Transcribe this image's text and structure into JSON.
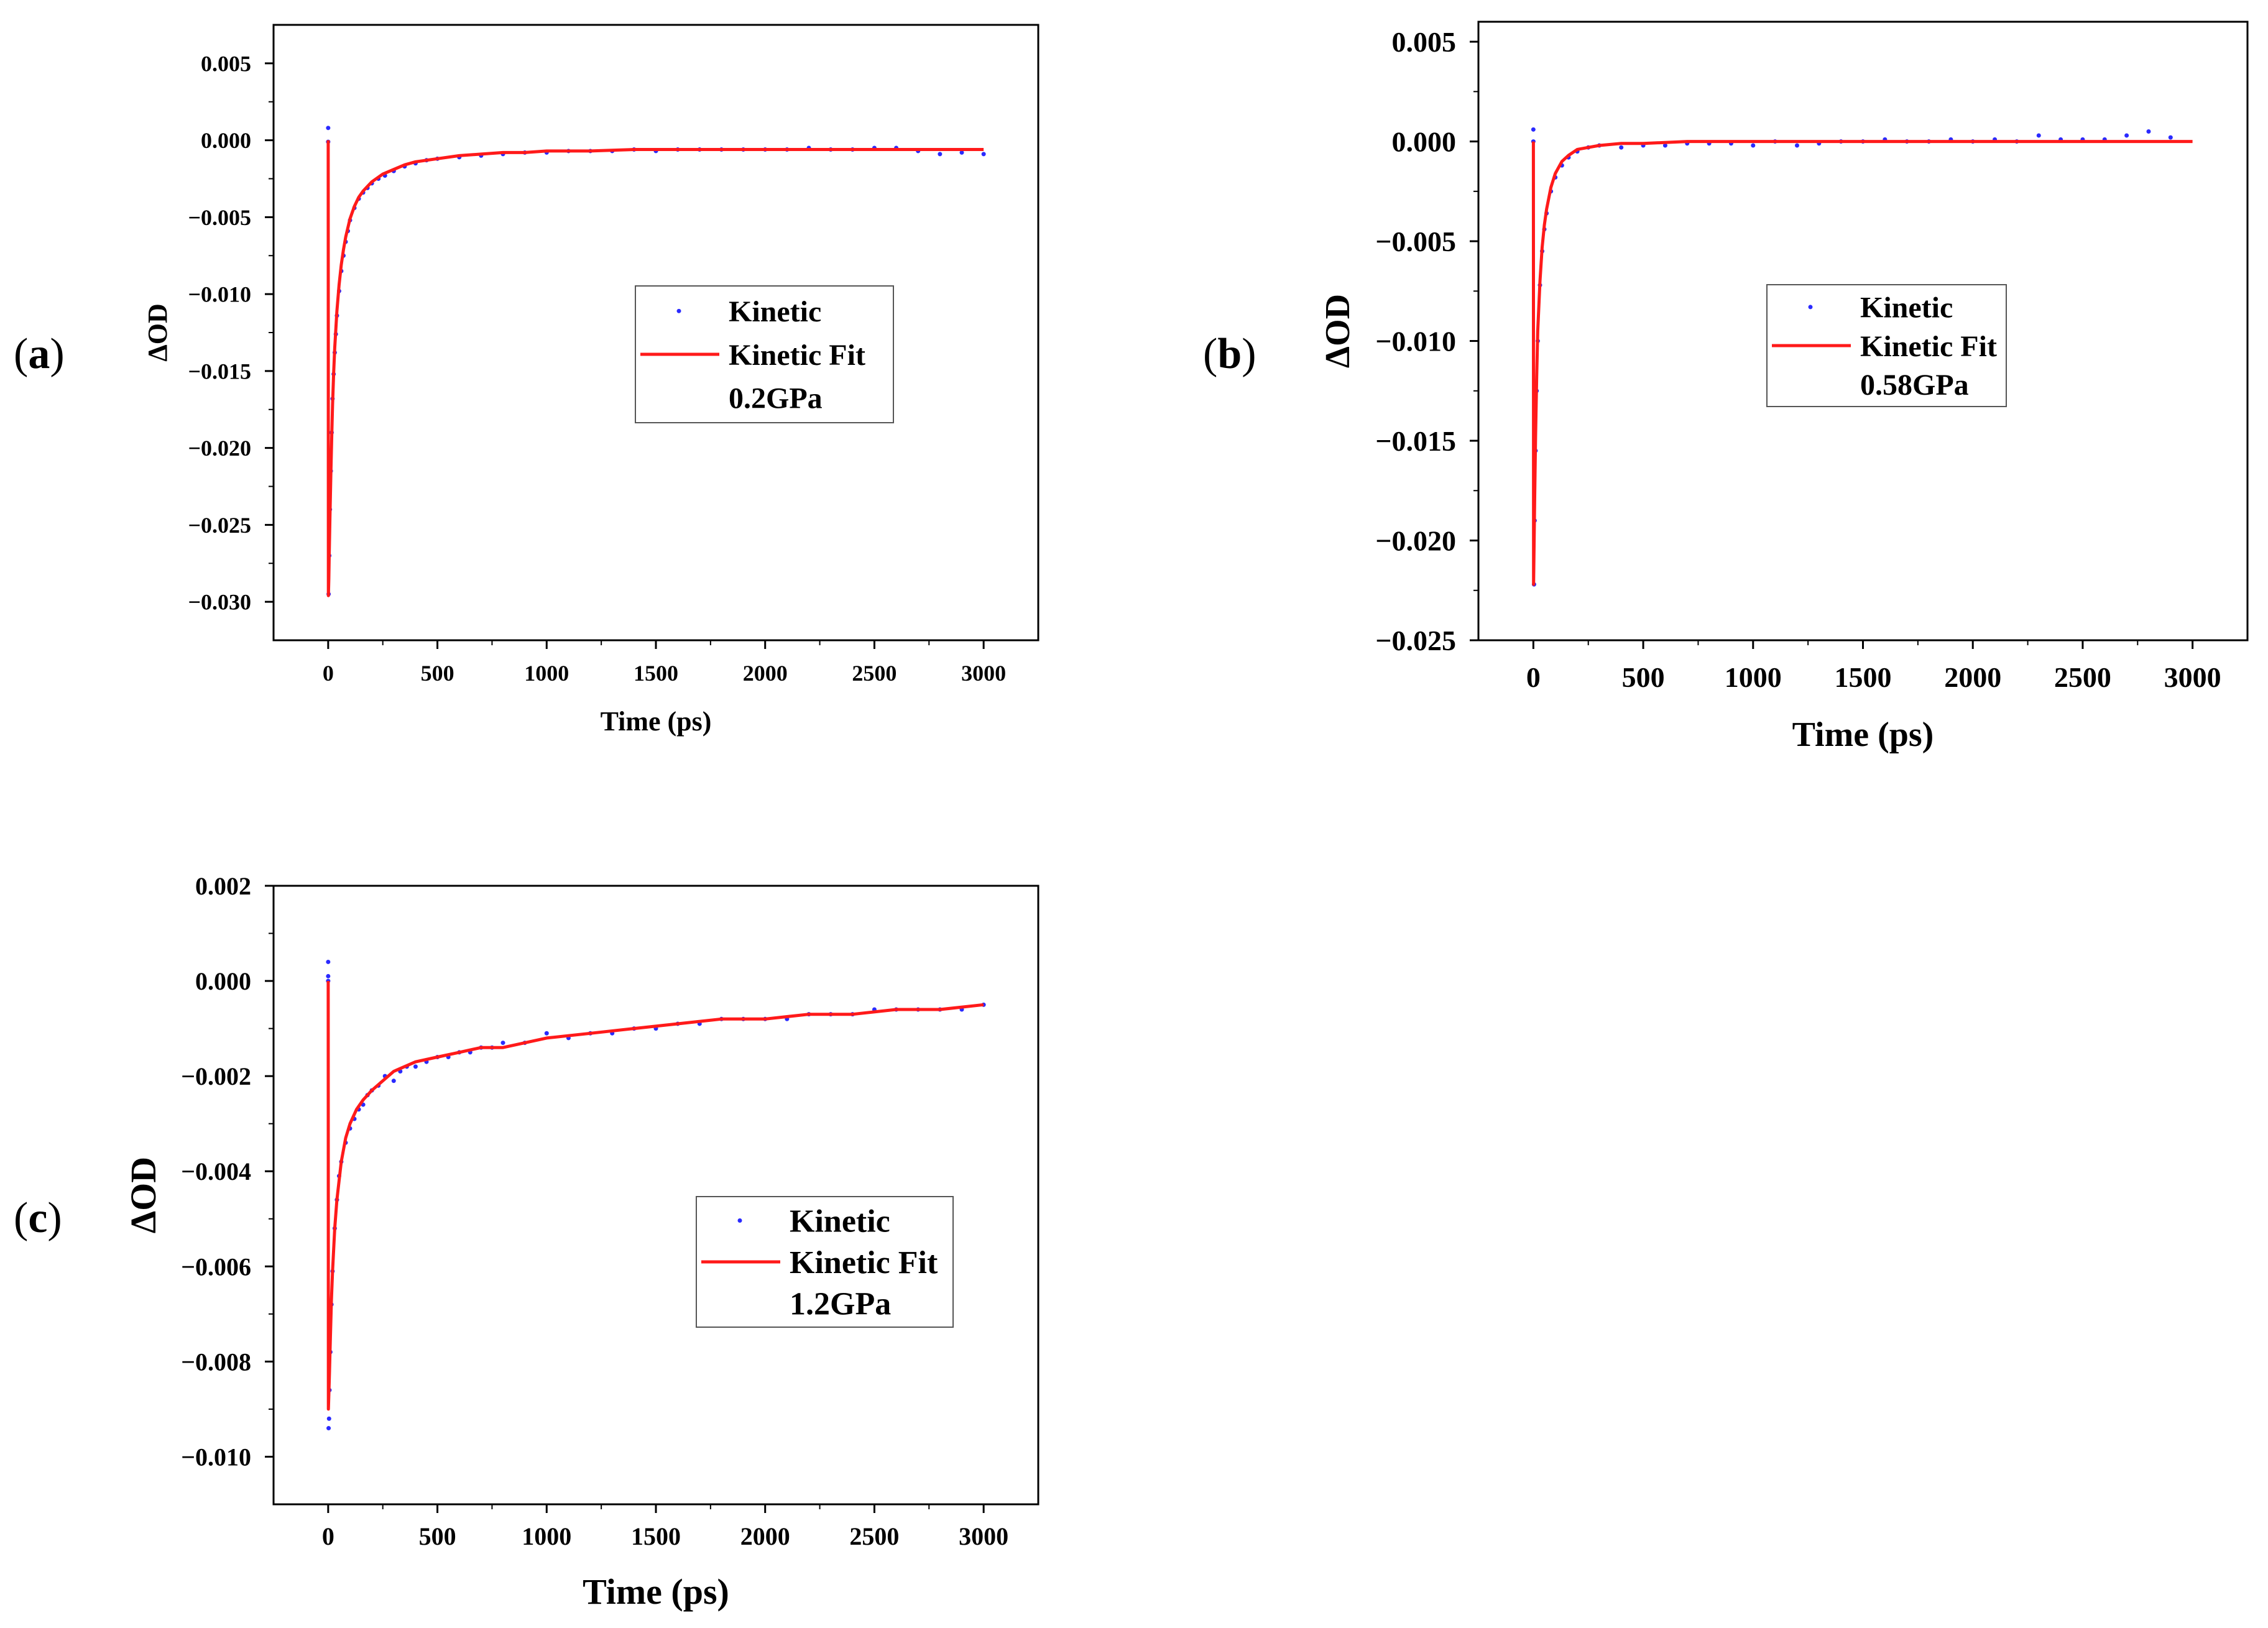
{
  "chart_data": [
    {
      "id": "a",
      "type": "scatter",
      "panel_prefix": "(",
      "panel_letter": "a",
      "panel_suffix": ")",
      "xlabel": "Time (ps)",
      "ylabel": "ΔOD",
      "xlim": [
        -250,
        3250
      ],
      "ylim": [
        -0.0325,
        0.0075
      ],
      "xticks": [
        0,
        500,
        1000,
        1500,
        2000,
        2500,
        3000
      ],
      "xtick_labels": [
        "0",
        "500",
        "1000",
        "1500",
        "2000",
        "2500",
        "3000"
      ],
      "yticks": [
        0.005,
        0.0,
        -0.005,
        -0.01,
        -0.015,
        -0.02,
        -0.025,
        -0.03
      ],
      "ytick_labels": [
        "0.005",
        "0.000",
        "−0.005",
        "−0.010",
        "−0.015",
        "−0.020",
        "−0.025",
        "−0.030"
      ],
      "legend": {
        "entries": [
          "Kinetic",
          "Kinetic Fit"
        ],
        "note": "0.2GPa",
        "placement": "center-right"
      },
      "series": [
        {
          "name": "Kinetic",
          "kind": "points",
          "color": "#2a2aff",
          "x": [
            0,
            0,
            2,
            5,
            8,
            12,
            16,
            20,
            25,
            30,
            35,
            40,
            50,
            60,
            70,
            80,
            90,
            100,
            120,
            140,
            160,
            180,
            200,
            230,
            260,
            300,
            350,
            400,
            450,
            500,
            600,
            700,
            800,
            900,
            1000,
            1100,
            1200,
            1300,
            1400,
            1500,
            1600,
            1700,
            1800,
            1900,
            2000,
            2100,
            2200,
            2300,
            2400,
            2500,
            2600,
            2700,
            2800,
            2900,
            3000
          ],
          "y": [
            0.0008,
            -0.0001,
            -0.0295,
            -0.027,
            -0.024,
            -0.0215,
            -0.019,
            -0.0168,
            -0.0152,
            -0.0138,
            -0.0126,
            -0.0114,
            -0.0098,
            -0.0085,
            -0.0075,
            -0.0066,
            -0.0059,
            -0.0052,
            -0.0044,
            -0.0038,
            -0.0034,
            -0.0031,
            -0.0028,
            -0.0025,
            -0.0023,
            -0.002,
            -0.0017,
            -0.0015,
            -0.0013,
            -0.0012,
            -0.0011,
            -0.001,
            -0.0009,
            -0.0008,
            -0.0008,
            -0.0007,
            -0.0007,
            -0.0007,
            -0.0006,
            -0.0007,
            -0.0006,
            -0.0006,
            -0.0006,
            -0.0006,
            -0.0006,
            -0.0006,
            -0.0005,
            -0.0006,
            -0.0006,
            -0.0005,
            -0.0005,
            -0.0007,
            -0.0009,
            -0.0008,
            -0.0009
          ]
        },
        {
          "name": "Kinetic Fit",
          "kind": "line",
          "color": "#ff1a1a",
          "x": [
            0,
            1,
            3,
            5,
            8,
            12,
            16,
            20,
            25,
            30,
            40,
            50,
            60,
            70,
            80,
            100,
            120,
            140,
            160,
            180,
            200,
            250,
            300,
            350,
            400,
            500,
            600,
            700,
            800,
            900,
            1000,
            1200,
            1400,
            1600,
            1800,
            2000,
            2200,
            2400,
            2600,
            2800,
            3000
          ],
          "y": [
            0.0,
            -0.0296,
            -0.0285,
            -0.0268,
            -0.0245,
            -0.0218,
            -0.0194,
            -0.0172,
            -0.0152,
            -0.0135,
            -0.0111,
            -0.0094,
            -0.0081,
            -0.0071,
            -0.0063,
            -0.0051,
            -0.0043,
            -0.0037,
            -0.0033,
            -0.003,
            -0.0027,
            -0.0022,
            -0.0019,
            -0.0016,
            -0.0014,
            -0.0012,
            -0.001,
            -0.0009,
            -0.0008,
            -0.0008,
            -0.0007,
            -0.0007,
            -0.0006,
            -0.0006,
            -0.0006,
            -0.0006,
            -0.0006,
            -0.0006,
            -0.0006,
            -0.0006,
            -0.0006
          ]
        }
      ]
    },
    {
      "id": "b",
      "type": "scatter",
      "panel_prefix": "(",
      "panel_letter": "b",
      "panel_suffix": ")",
      "xlabel": "Time (ps)",
      "ylabel": "ΔOD",
      "xlim": [
        -250,
        3250
      ],
      "ylim": [
        -0.025,
        0.006
      ],
      "xticks": [
        0,
        500,
        1000,
        1500,
        2000,
        2500,
        3000
      ],
      "xtick_labels": [
        "0",
        "500",
        "1000",
        "1500",
        "2000",
        "2500",
        "3000"
      ],
      "yticks": [
        0.005,
        0.0,
        -0.005,
        -0.01,
        -0.015,
        -0.02,
        -0.025
      ],
      "ytick_labels": [
        "0.005",
        "0.000",
        "−0.005",
        "−0.010",
        "−0.015",
        "−0.020",
        "−0.025"
      ],
      "legend": {
        "entries": [
          "Kinetic",
          "Kinetic Fit"
        ],
        "note": "0.58GPa",
        "placement": "center-right"
      },
      "series": [
        {
          "name": "Kinetic",
          "kind": "points",
          "color": "#2a2aff",
          "x": [
            0,
            0,
            3,
            6,
            10,
            15,
            20,
            30,
            40,
            50,
            60,
            80,
            100,
            130,
            160,
            200,
            250,
            300,
            400,
            500,
            600,
            700,
            800,
            900,
            1000,
            1100,
            1200,
            1300,
            1400,
            1500,
            1600,
            1700,
            1800,
            1900,
            2000,
            2100,
            2200,
            2300,
            2400,
            2500,
            2600,
            2700,
            2800,
            2900
          ],
          "y": [
            0.0006,
            0.0,
            -0.0222,
            -0.019,
            -0.0155,
            -0.0125,
            -0.01,
            -0.0072,
            -0.0055,
            -0.0044,
            -0.0036,
            -0.0025,
            -0.0018,
            -0.0012,
            -0.0008,
            -0.0005,
            -0.0003,
            -0.0002,
            -0.0003,
            -0.0002,
            -0.0002,
            -0.0001,
            -0.0001,
            -0.0001,
            -0.0002,
            0.0,
            -0.0002,
            -0.0001,
            0.0,
            0.0,
            0.0001,
            0.0,
            0.0,
            0.0001,
            0.0,
            0.0001,
            0.0,
            0.0003,
            0.0001,
            0.0001,
            0.0001,
            0.0003,
            0.0005,
            0.0002
          ]
        },
        {
          "name": "Kinetic Fit",
          "kind": "line",
          "color": "#ff1a1a",
          "x": [
            0,
            1,
            3,
            6,
            10,
            15,
            20,
            30,
            40,
            50,
            60,
            80,
            100,
            130,
            160,
            200,
            250,
            300,
            400,
            500,
            700,
            1000,
            1500,
            2000,
            2500,
            3000
          ],
          "y": [
            0.0,
            -0.0222,
            -0.0205,
            -0.0178,
            -0.0148,
            -0.0118,
            -0.0095,
            -0.007,
            -0.0053,
            -0.0042,
            -0.0034,
            -0.0023,
            -0.0016,
            -0.001,
            -0.0007,
            -0.0004,
            -0.0003,
            -0.0002,
            -0.0001,
            -0.0001,
            0.0,
            0.0,
            0.0,
            0.0,
            0.0,
            0.0
          ]
        }
      ]
    },
    {
      "id": "c",
      "type": "scatter",
      "panel_prefix": "(",
      "panel_letter": "c",
      "panel_suffix": ")",
      "xlabel": "Time (ps)",
      "ylabel": "ΔOD",
      "xlim": [
        -250,
        3250
      ],
      "ylim": [
        -0.011,
        0.002
      ],
      "xticks": [
        0,
        500,
        1000,
        1500,
        2000,
        2500,
        3000
      ],
      "xtick_labels": [
        "0",
        "500",
        "1000",
        "1500",
        "2000",
        "2500",
        "3000"
      ],
      "yticks": [
        0.002,
        0.0,
        -0.002,
        -0.004,
        -0.006,
        -0.008,
        -0.01
      ],
      "ytick_labels": [
        "0.002",
        "0.000",
        "−0.002",
        "−0.004",
        "−0.006",
        "−0.008",
        "−0.010"
      ],
      "legend": {
        "entries": [
          "Kinetic",
          "Kinetic Fit"
        ],
        "note": "1.2GPa",
        "placement": "center-right"
      },
      "series": [
        {
          "name": "Kinetic",
          "kind": "points",
          "color": "#2a2aff",
          "x": [
            0,
            0,
            0,
            2,
            4,
            6,
            10,
            15,
            20,
            30,
            40,
            50,
            60,
            80,
            100,
            120,
            140,
            160,
            180,
            200,
            230,
            260,
            300,
            330,
            360,
            400,
            450,
            500,
            550,
            600,
            650,
            700,
            750,
            800,
            900,
            1000,
            1100,
            1200,
            1300,
            1400,
            1500,
            1600,
            1700,
            1800,
            1900,
            2000,
            2100,
            2200,
            2300,
            2400,
            2500,
            2600,
            2700,
            2800,
            2900,
            3000
          ],
          "y": [
            0.0004,
            0.0001,
            0.0,
            -0.0094,
            -0.0092,
            -0.0086,
            -0.0078,
            -0.0068,
            -0.0061,
            -0.0052,
            -0.0046,
            -0.0041,
            -0.0038,
            -0.0034,
            -0.0031,
            -0.0029,
            -0.0027,
            -0.0026,
            -0.0024,
            -0.0023,
            -0.0022,
            -0.002,
            -0.0021,
            -0.0019,
            -0.0018,
            -0.0018,
            -0.0017,
            -0.0016,
            -0.0016,
            -0.0015,
            -0.0015,
            -0.0014,
            -0.0014,
            -0.0013,
            -0.0013,
            -0.0011,
            -0.0012,
            -0.0011,
            -0.0011,
            -0.001,
            -0.001,
            -0.0009,
            -0.0009,
            -0.0008,
            -0.0008,
            -0.0008,
            -0.0008,
            -0.0007,
            -0.0007,
            -0.0007,
            -0.0006,
            -0.0006,
            -0.0006,
            -0.0006,
            -0.0006,
            -0.0005
          ]
        },
        {
          "name": "Kinetic Fit",
          "kind": "line",
          "color": "#ff1a1a",
          "x": [
            0,
            1,
            3,
            6,
            10,
            15,
            20,
            30,
            40,
            50,
            60,
            80,
            100,
            130,
            160,
            200,
            250,
            300,
            350,
            400,
            500,
            600,
            700,
            800,
            1000,
            1200,
            1400,
            1600,
            1800,
            2000,
            2200,
            2400,
            2600,
            2800,
            3000
          ],
          "y": [
            0.0,
            -0.009,
            -0.0087,
            -0.0082,
            -0.0075,
            -0.0067,
            -0.0061,
            -0.0052,
            -0.0046,
            -0.0042,
            -0.0038,
            -0.0033,
            -0.003,
            -0.0027,
            -0.0025,
            -0.0023,
            -0.0021,
            -0.0019,
            -0.0018,
            -0.0017,
            -0.0016,
            -0.0015,
            -0.0014,
            -0.0014,
            -0.0012,
            -0.0011,
            -0.001,
            -0.0009,
            -0.0008,
            -0.0008,
            -0.0007,
            -0.0007,
            -0.0006,
            -0.0006,
            -0.0005
          ]
        }
      ]
    }
  ]
}
